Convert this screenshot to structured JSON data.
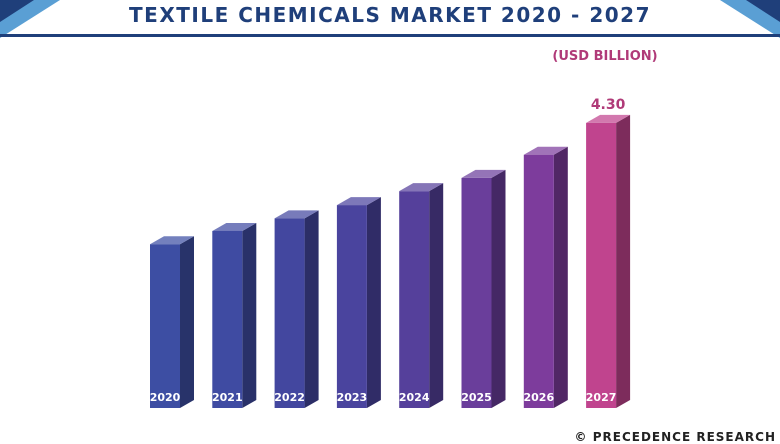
{
  "header": {
    "title": "TEXTILE CHEMICALS MARKET 2020 - 2027"
  },
  "footer": {
    "text": "© PRECEDENCE RESEARCH"
  },
  "chart_data": {
    "type": "bar",
    "title": "TEXTILE CHEMICALS MARKET 2020 - 2027",
    "unit_label": "(USD BILLION)",
    "categories": [
      "2020",
      "2021",
      "2022",
      "2023",
      "2024",
      "2025",
      "2026",
      "2027"
    ],
    "values": [
      2.47,
      2.67,
      2.86,
      3.06,
      3.27,
      3.47,
      3.82,
      4.3
    ],
    "data_labels": {
      "2027": "4.30"
    },
    "ylim": [
      0,
      4.6
    ],
    "grid": false,
    "legend": "none",
    "bar_colors": [
      "#3d4ea3",
      "#3f4ba2",
      "#43479f",
      "#4a449e",
      "#55409b",
      "#6a3e9b",
      "#7d3c9c",
      "#c0448e"
    ]
  }
}
